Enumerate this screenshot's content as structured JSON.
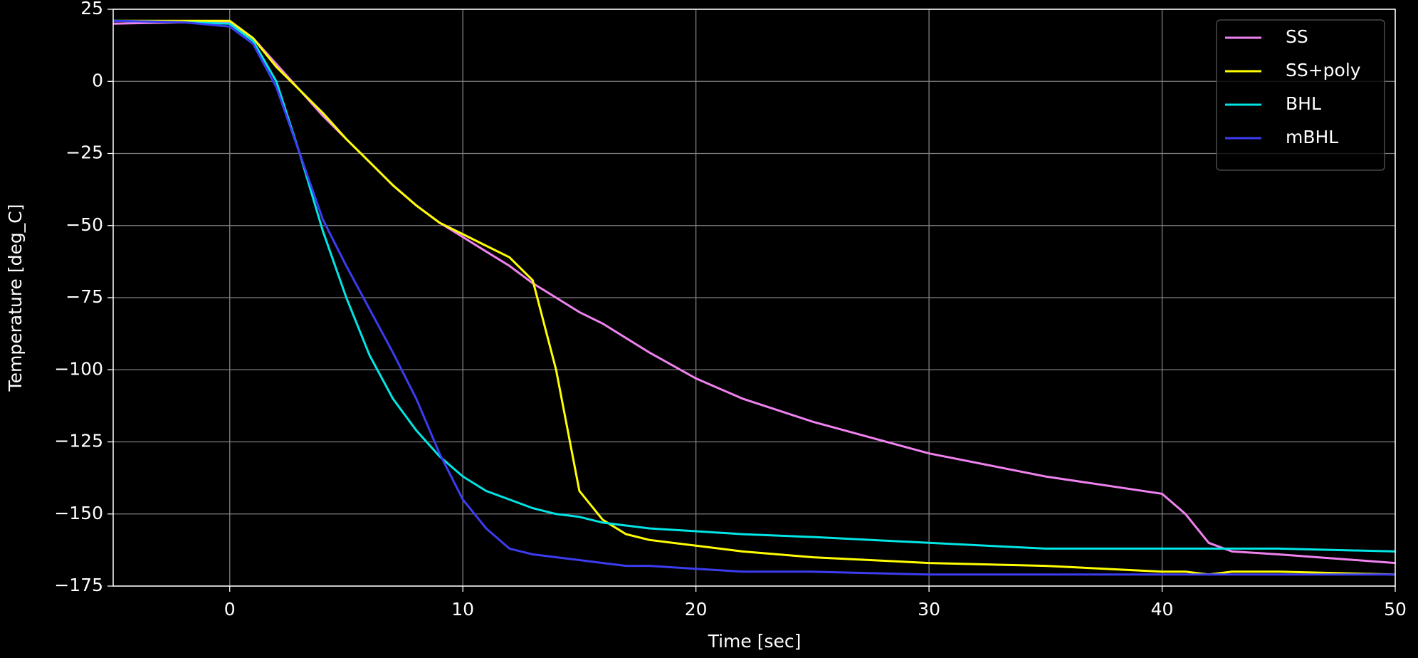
{
  "chart_data": {
    "type": "line",
    "x_label": "Time [sec]",
    "y_label": "Temperature [deg_C]",
    "x": [
      -5,
      -2,
      0,
      1,
      2,
      3,
      4,
      5,
      6,
      7,
      8,
      9,
      10,
      11,
      12,
      13,
      14,
      15,
      16,
      17,
      18,
      20,
      22,
      25,
      30,
      35,
      40,
      41,
      42,
      43,
      45,
      50
    ],
    "series": [
      {
        "name": "SS",
        "color": "#ee82ee",
        "values": [
          20,
          20.5,
          20.5,
          15,
          6,
          -3,
          -12,
          -20,
          -28,
          -36,
          -43,
          -49,
          -54,
          -59,
          -64,
          -70,
          -75,
          -80,
          -84,
          -89,
          -94,
          -103,
          -110,
          -118,
          -129,
          -137,
          -143,
          -150,
          -160,
          -163,
          -164,
          -167
        ]
      },
      {
        "name": "SS+poly",
        "color": "#ffff00",
        "values": [
          21,
          21,
          21,
          15,
          5,
          -3,
          -11,
          -20,
          -28,
          -36,
          -43,
          -49,
          -53,
          -57,
          -61,
          -69,
          -100,
          -142,
          -152,
          -157,
          -159,
          -161,
          -163,
          -165,
          -167,
          -168,
          -170,
          -170,
          -171,
          -170,
          -170,
          -171
        ]
      },
      {
        "name": "BHL",
        "color": "#00e5e5",
        "values": [
          21,
          20.5,
          20,
          14,
          0,
          -25,
          -52,
          -75,
          -95,
          -110,
          -121,
          -130,
          -137,
          -142,
          -145,
          -148,
          -150,
          -151,
          -153,
          -154,
          -155,
          -156,
          -157,
          -158,
          -160,
          -162,
          -162,
          -162,
          -162,
          -162,
          -162,
          -163
        ]
      },
      {
        "name": "mBHL",
        "color": "#3c3cf0",
        "values": [
          21,
          20.5,
          19,
          13,
          -2,
          -25,
          -48,
          -64,
          -79,
          -94,
          -110,
          -129,
          -145,
          -155,
          -162,
          -164,
          -165,
          -166,
          -167,
          -168,
          -168,
          -169,
          -170,
          -170,
          -171,
          -171,
          -171,
          -171,
          -171,
          -171,
          -171,
          -171
        ]
      }
    ],
    "xlim": [
      -5,
      50
    ],
    "ylim": [
      -175,
      25
    ],
    "xticks": [
      0,
      10,
      20,
      30,
      40,
      50
    ],
    "yticks": [
      {
        "value": -175,
        "label": "−175"
      },
      {
        "value": -150,
        "label": "−150"
      },
      {
        "value": -125,
        "label": "−125"
      },
      {
        "value": -100,
        "label": "−100"
      },
      {
        "value": -75,
        "label": "−75"
      },
      {
        "value": -50,
        "label": "−50"
      },
      {
        "value": -25,
        "label": "−25"
      },
      0,
      25
    ],
    "grid": true,
    "legend": "upper right"
  }
}
